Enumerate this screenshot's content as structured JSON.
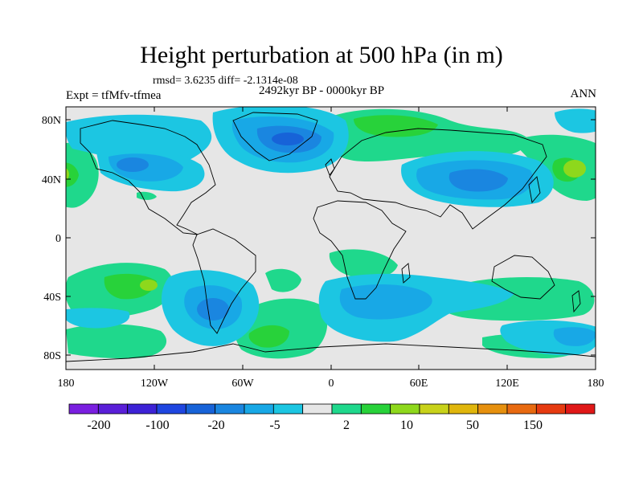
{
  "title": "Height perturbation at 500 hPa (in m)",
  "stats_line": "rmsd= 3.6235 diff= -2.1314e-08",
  "period_label": "2492kyr BP - 0000kyr BP",
  "expt_label": "Expt = tfMfv-tfmea",
  "season_label": "ANN",
  "lat_ticks": [
    "80N",
    "40N",
    "0",
    "40S",
    "80S"
  ],
  "lon_ticks": [
    "180",
    "120W",
    "60W",
    "0",
    "60E",
    "120E",
    "180"
  ],
  "colorbar": {
    "labels": [
      "-200",
      "-100",
      "-20",
      "-5",
      "2",
      "10",
      "50",
      "150"
    ],
    "colors": [
      "#7a1fe0",
      "#5a1fd8",
      "#3d22d6",
      "#1f46e0",
      "#1763d8",
      "#1a86e0",
      "#18a8e6",
      "#1cc6e2",
      "#e6e6e6",
      "#1fd88c",
      "#28d23a",
      "#8ed81c",
      "#c8d21a",
      "#e0b60c",
      "#e6900e",
      "#e86a10",
      "#e63a10",
      "#e01818"
    ]
  }
}
